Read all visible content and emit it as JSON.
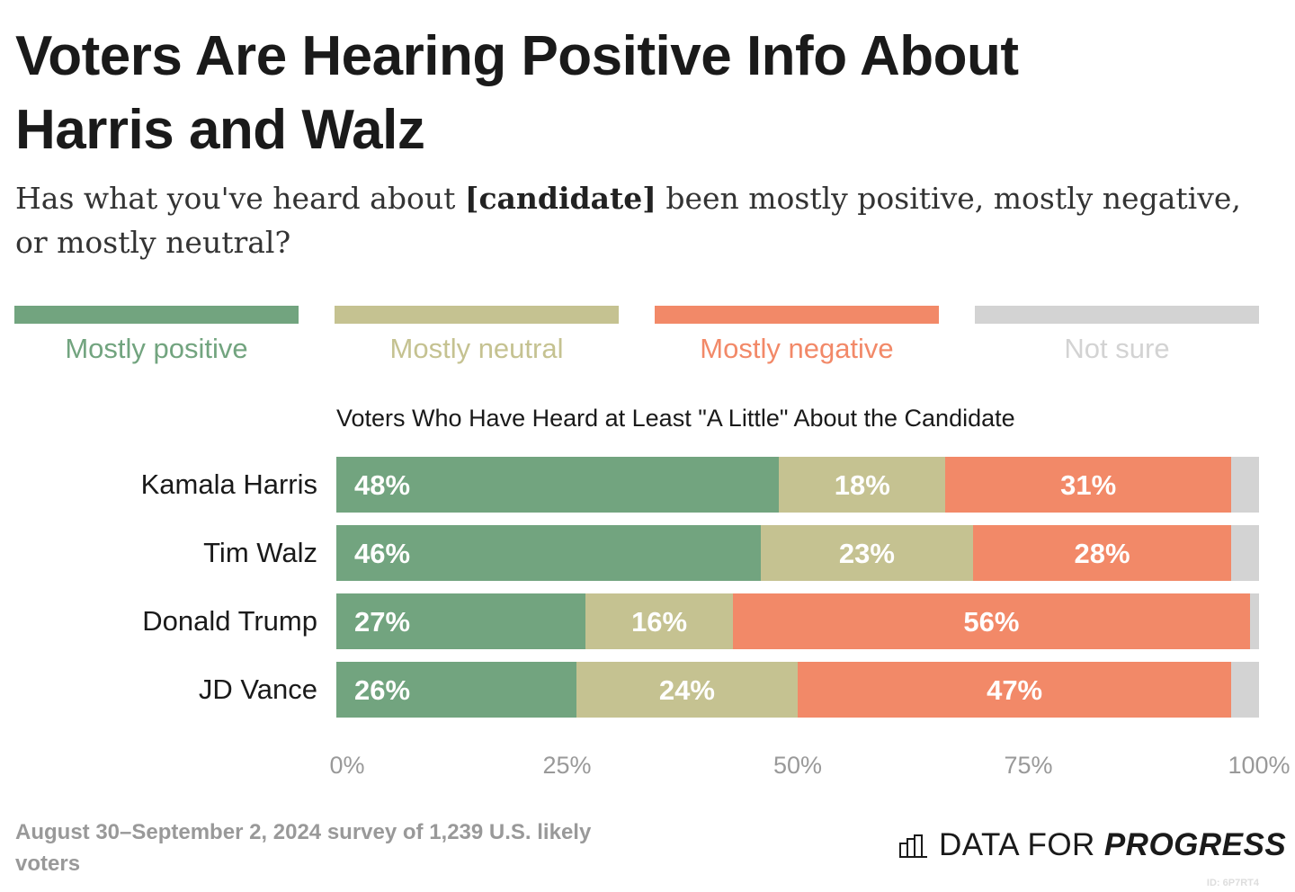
{
  "title": "Voters Are Hearing Positive Info About Harris and Walz",
  "subtitle": {
    "before": "Has what you've heard about ",
    "bold": "[candidate]",
    "after": " been mostly positive, mostly negative, or mostly neutral?"
  },
  "footer": "August 30–September 2, 2024 survey of 1,239 U.S. likely voters",
  "logo": {
    "part1": "DATA FOR",
    "part2": "PROGRESS"
  },
  "chart_id": "ID: 6P7RT4",
  "chart_data": {
    "type": "bar",
    "orientation": "horizontal",
    "stacked": true,
    "subtitle": "Voters Who Have Heard at Least \"A Little\" About the Candidate",
    "categories": [
      "Kamala Harris",
      "Tim Walz",
      "Donald Trump",
      "JD Vance"
    ],
    "series": [
      {
        "name": "Mostly positive",
        "color": "#72a47f",
        "values": [
          48,
          46,
          27,
          26
        ],
        "labels": [
          "48%",
          "46%",
          "27%",
          "26%"
        ]
      },
      {
        "name": "Mostly neutral",
        "color": "#c5c291",
        "values": [
          18,
          23,
          16,
          24
        ],
        "labels": [
          "18%",
          "23%",
          "16%",
          "24%"
        ]
      },
      {
        "name": "Mostly negative",
        "color": "#f28968",
        "values": [
          31,
          28,
          56,
          47
        ],
        "labels": [
          "31%",
          "28%",
          "56%",
          "47%"
        ]
      },
      {
        "name": "Not sure",
        "color": "#d3d3d3",
        "values": [
          3,
          3,
          1,
          3
        ],
        "labels": []
      }
    ],
    "xlim": [
      0,
      100
    ],
    "x_ticks": [
      "0%",
      "25%",
      "50%",
      "75%",
      "100%"
    ],
    "legend": "top",
    "grid": false
  }
}
